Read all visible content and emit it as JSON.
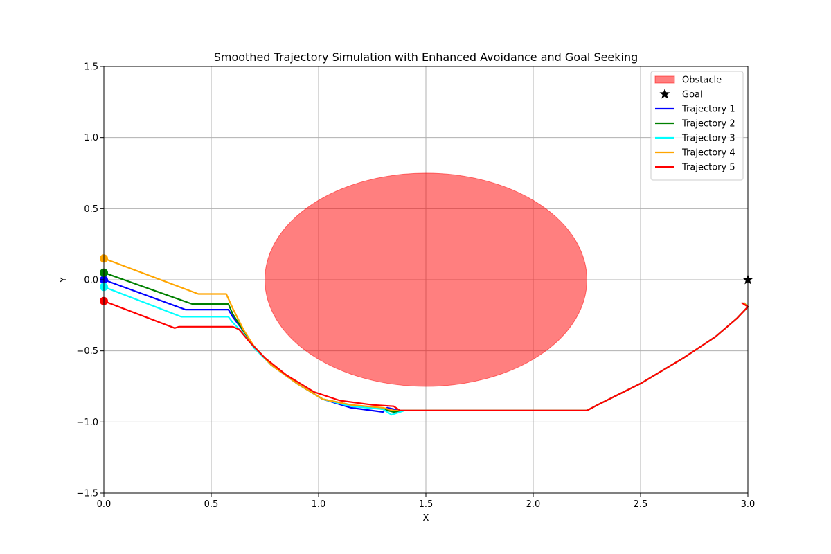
{
  "chart_data": {
    "type": "line",
    "title": "Smoothed Trajectory Simulation with Enhanced Avoidance and Goal Seeking",
    "xlabel": "X",
    "ylabel": "Y",
    "xlim": [
      0.0,
      3.0
    ],
    "ylim": [
      -1.5,
      1.5
    ],
    "xticks": [
      0.0,
      0.5,
      1.0,
      1.5,
      2.0,
      2.5,
      3.0
    ],
    "xtick_labels": [
      "0.0",
      "0.5",
      "1.0",
      "1.5",
      "2.0",
      "2.5",
      "3.0"
    ],
    "yticks": [
      -1.5,
      -1.0,
      -0.5,
      0.0,
      0.5,
      1.0,
      1.5
    ],
    "ytick_labels": [
      "−1.5",
      "−1.0",
      "−0.5",
      "0.0",
      "0.5",
      "1.0",
      "1.5"
    ],
    "grid": true,
    "legend_position": "top-right",
    "obstacle": {
      "label": "Obstacle",
      "center": [
        1.5,
        0.0
      ],
      "radius_x": 0.75,
      "radius_y": 0.75,
      "color": "#ff0000",
      "opacity": 0.5
    },
    "goal": {
      "label": "Goal",
      "x": 3.0,
      "y": 0.0,
      "color": "#000000"
    },
    "series": [
      {
        "name": "Trajectory 1",
        "color": "#0000ff",
        "points": [
          [
            0.0,
            0.0
          ],
          [
            0.38,
            -0.21
          ],
          [
            0.58,
            -0.21
          ],
          [
            0.6,
            -0.26
          ],
          [
            0.65,
            -0.36
          ],
          [
            0.7,
            -0.47
          ],
          [
            0.78,
            -0.6
          ],
          [
            0.9,
            -0.73
          ],
          [
            1.02,
            -0.84
          ],
          [
            1.15,
            -0.9
          ],
          [
            1.3,
            -0.93
          ],
          [
            1.32,
            -0.9
          ],
          [
            1.38,
            -0.92
          ],
          [
            1.8,
            -0.92
          ],
          [
            2.25,
            -0.92
          ],
          [
            2.3,
            -0.88
          ],
          [
            2.5,
            -0.73
          ],
          [
            2.7,
            -0.55
          ],
          [
            2.85,
            -0.4
          ],
          [
            2.95,
            -0.27
          ],
          [
            3.0,
            -0.19
          ],
          [
            2.98,
            -0.16
          ]
        ]
      },
      {
        "name": "Trajectory 2",
        "color": "#008000",
        "points": [
          [
            0.0,
            0.05
          ],
          [
            0.41,
            -0.17
          ],
          [
            0.58,
            -0.17
          ],
          [
            0.6,
            -0.24
          ],
          [
            0.65,
            -0.36
          ],
          [
            0.7,
            -0.47
          ],
          [
            0.78,
            -0.6
          ],
          [
            0.9,
            -0.73
          ],
          [
            1.02,
            -0.84
          ],
          [
            1.15,
            -0.88
          ],
          [
            1.3,
            -0.91
          ],
          [
            1.35,
            -0.93
          ],
          [
            1.4,
            -0.92
          ],
          [
            1.8,
            -0.92
          ],
          [
            2.25,
            -0.92
          ],
          [
            2.3,
            -0.88
          ],
          [
            2.5,
            -0.73
          ],
          [
            2.7,
            -0.55
          ],
          [
            2.85,
            -0.4
          ],
          [
            2.95,
            -0.27
          ],
          [
            3.0,
            -0.19
          ],
          [
            2.98,
            -0.16
          ]
        ]
      },
      {
        "name": "Trajectory 3",
        "color": "#00ffff",
        "points": [
          [
            0.0,
            -0.05
          ],
          [
            0.36,
            -0.26
          ],
          [
            0.58,
            -0.26
          ],
          [
            0.6,
            -0.3
          ],
          [
            0.65,
            -0.38
          ],
          [
            0.7,
            -0.48
          ],
          [
            0.78,
            -0.6
          ],
          [
            0.9,
            -0.73
          ],
          [
            1.02,
            -0.84
          ],
          [
            1.15,
            -0.89
          ],
          [
            1.3,
            -0.91
          ],
          [
            1.34,
            -0.95
          ],
          [
            1.4,
            -0.92
          ],
          [
            1.8,
            -0.92
          ],
          [
            2.25,
            -0.92
          ],
          [
            2.3,
            -0.88
          ],
          [
            2.5,
            -0.73
          ],
          [
            2.7,
            -0.55
          ],
          [
            2.85,
            -0.4
          ],
          [
            2.95,
            -0.27
          ],
          [
            3.0,
            -0.19
          ],
          [
            2.98,
            -0.16
          ]
        ]
      },
      {
        "name": "Trajectory 4",
        "color": "#ffa500",
        "points": [
          [
            0.0,
            0.15
          ],
          [
            0.44,
            -0.1
          ],
          [
            0.57,
            -0.1
          ],
          [
            0.6,
            -0.2
          ],
          [
            0.65,
            -0.35
          ],
          [
            0.7,
            -0.47
          ],
          [
            0.78,
            -0.6
          ],
          [
            0.9,
            -0.73
          ],
          [
            1.02,
            -0.84
          ],
          [
            1.15,
            -0.88
          ],
          [
            1.3,
            -0.9
          ],
          [
            1.35,
            -0.92
          ],
          [
            1.4,
            -0.92
          ],
          [
            1.8,
            -0.92
          ],
          [
            2.25,
            -0.92
          ],
          [
            2.3,
            -0.88
          ],
          [
            2.5,
            -0.73
          ],
          [
            2.7,
            -0.55
          ],
          [
            2.85,
            -0.4
          ],
          [
            2.95,
            -0.27
          ],
          [
            3.0,
            -0.19
          ],
          [
            2.98,
            -0.16
          ]
        ]
      },
      {
        "name": "Trajectory 5",
        "color": "#ff0000",
        "points": [
          [
            0.0,
            -0.15
          ],
          [
            0.33,
            -0.34
          ],
          [
            0.35,
            -0.33
          ],
          [
            0.6,
            -0.33
          ],
          [
            0.63,
            -0.35
          ],
          [
            0.68,
            -0.44
          ],
          [
            0.75,
            -0.55
          ],
          [
            0.85,
            -0.67
          ],
          [
            0.98,
            -0.79
          ],
          [
            1.1,
            -0.85
          ],
          [
            1.25,
            -0.88
          ],
          [
            1.35,
            -0.89
          ],
          [
            1.38,
            -0.92
          ],
          [
            1.8,
            -0.92
          ],
          [
            2.25,
            -0.92
          ],
          [
            2.3,
            -0.88
          ],
          [
            2.5,
            -0.73
          ],
          [
            2.7,
            -0.55
          ],
          [
            2.85,
            -0.4
          ],
          [
            2.95,
            -0.27
          ],
          [
            3.0,
            -0.19
          ],
          [
            2.97,
            -0.16
          ]
        ]
      }
    ]
  }
}
